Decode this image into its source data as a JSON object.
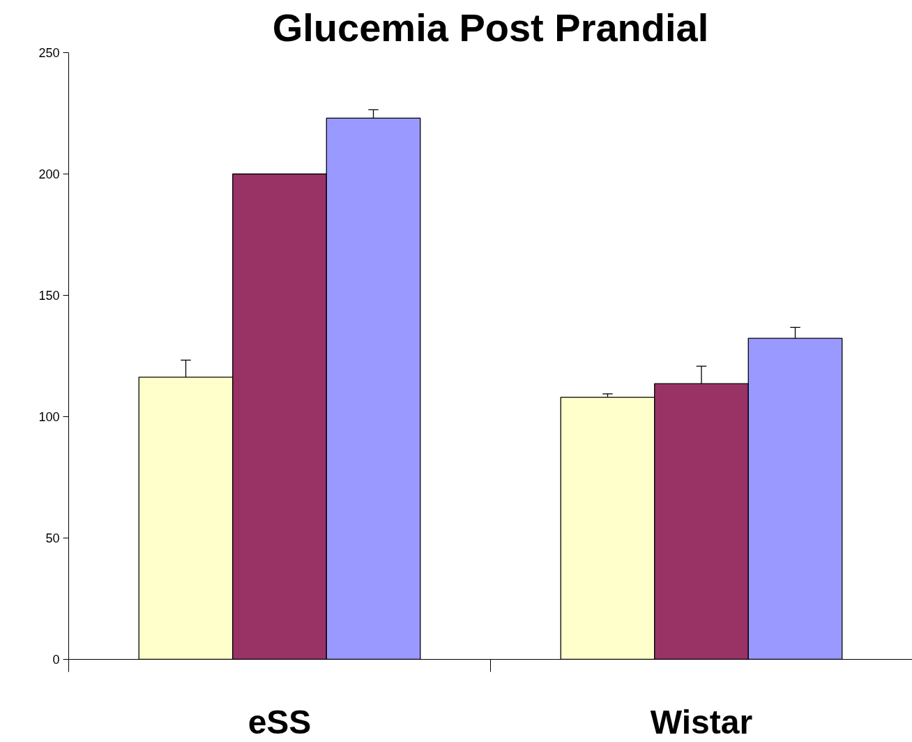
{
  "chart_data": {
    "type": "bar",
    "title": "Glucemia Post Prandial",
    "categories": [
      "eSS",
      "Wistar"
    ],
    "series": [
      {
        "color": "#ffffcc",
        "values": [
          116.3,
          108
        ],
        "errors": [
          7,
          1.4
        ]
      },
      {
        "color": "#993366",
        "values": [
          200,
          113.6
        ],
        "errors": [
          null,
          7.2
        ]
      },
      {
        "color": "#9999ff",
        "values": [
          223,
          132.3
        ],
        "errors": [
          3.5,
          4.5
        ]
      }
    ],
    "ylim": [
      0,
      250
    ],
    "yticks": [
      0,
      50,
      100,
      150,
      200,
      250
    ]
  }
}
